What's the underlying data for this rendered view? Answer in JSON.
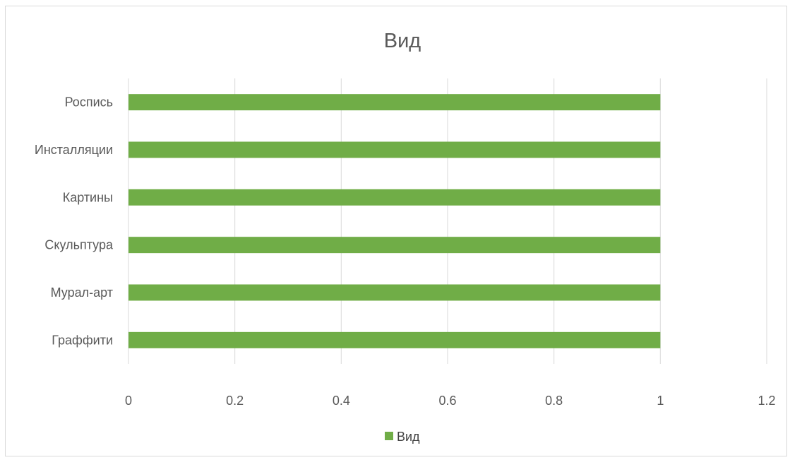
{
  "chart_data": {
    "type": "bar",
    "orientation": "horizontal",
    "title": "Вид",
    "categories": [
      "Граффити",
      "Мурал-арт",
      "Скульптура",
      "Картины",
      "Инсталляции",
      "Роспись"
    ],
    "series": [
      {
        "name": "Вид",
        "values": [
          1,
          1,
          1,
          1,
          1,
          1
        ],
        "color": "#70ad47"
      }
    ],
    "xlim": [
      0,
      1.2
    ],
    "x_ticks": [
      "0",
      "0.2",
      "0.4",
      "0.6",
      "0.8",
      "1",
      "1.2"
    ],
    "grid": "vertical",
    "legend_position": "bottom"
  }
}
